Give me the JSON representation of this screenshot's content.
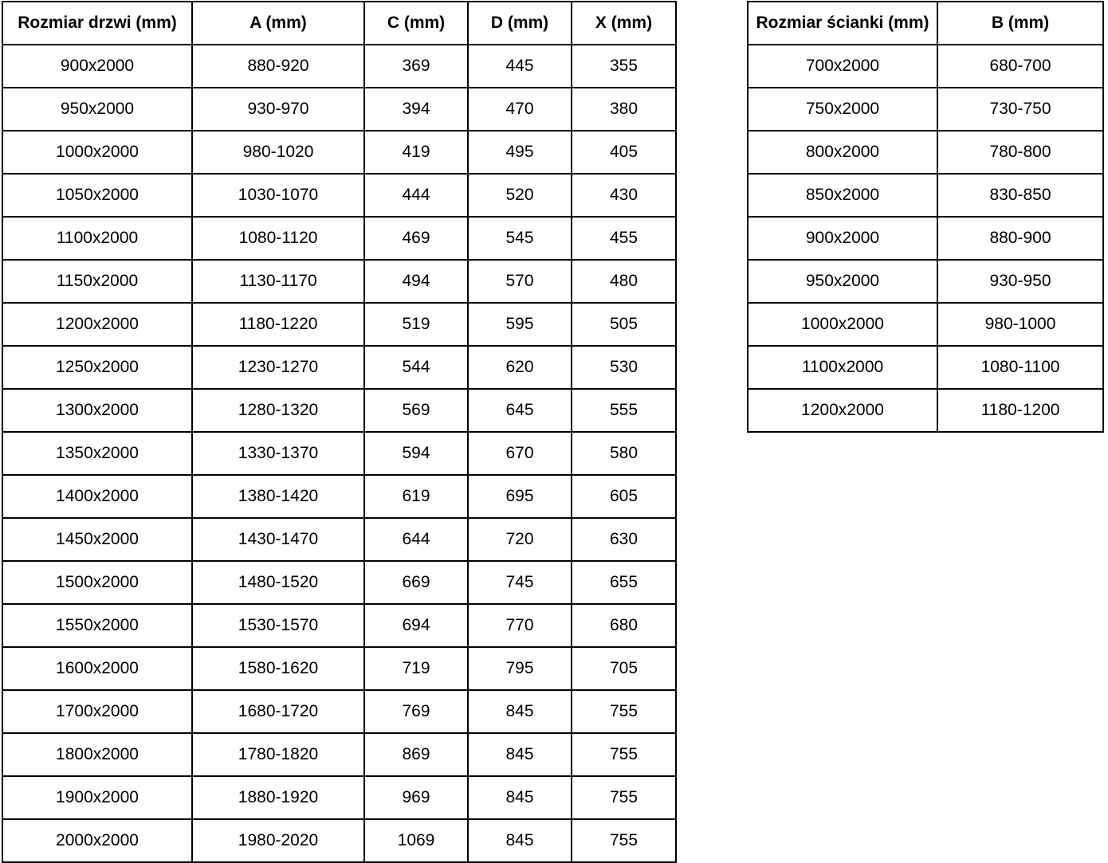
{
  "doors": {
    "headers": [
      "Rozmiar drzwi (mm)",
      "A (mm)",
      "C (mm)",
      "D (mm)",
      "X (mm)"
    ],
    "rows": [
      [
        "900x2000",
        "880-920",
        "369",
        "445",
        "355"
      ],
      [
        "950x2000",
        "930-970",
        "394",
        "470",
        "380"
      ],
      [
        "1000x2000",
        "980-1020",
        "419",
        "495",
        "405"
      ],
      [
        "1050x2000",
        "1030-1070",
        "444",
        "520",
        "430"
      ],
      [
        "1100x2000",
        "1080-1120",
        "469",
        "545",
        "455"
      ],
      [
        "1150x2000",
        "1130-1170",
        "494",
        "570",
        "480"
      ],
      [
        "1200x2000",
        "1180-1220",
        "519",
        "595",
        "505"
      ],
      [
        "1250x2000",
        "1230-1270",
        "544",
        "620",
        "530"
      ],
      [
        "1300x2000",
        "1280-1320",
        "569",
        "645",
        "555"
      ],
      [
        "1350x2000",
        "1330-1370",
        "594",
        "670",
        "580"
      ],
      [
        "1400x2000",
        "1380-1420",
        "619",
        "695",
        "605"
      ],
      [
        "1450x2000",
        "1430-1470",
        "644",
        "720",
        "630"
      ],
      [
        "1500x2000",
        "1480-1520",
        "669",
        "745",
        "655"
      ],
      [
        "1550x2000",
        "1530-1570",
        "694",
        "770",
        "680"
      ],
      [
        "1600x2000",
        "1580-1620",
        "719",
        "795",
        "705"
      ],
      [
        "1700x2000",
        "1680-1720",
        "769",
        "845",
        "755"
      ],
      [
        "1800x2000",
        "1780-1820",
        "869",
        "845",
        "755"
      ],
      [
        "1900x2000",
        "1880-1920",
        "969",
        "845",
        "755"
      ],
      [
        "2000x2000",
        "1980-2020",
        "1069",
        "845",
        "755"
      ]
    ]
  },
  "walls": {
    "headers": [
      "Rozmiar ścianki (mm)",
      "B (mm)"
    ],
    "rows": [
      [
        "700x2000",
        "680-700"
      ],
      [
        "750x2000",
        "730-750"
      ],
      [
        "800x2000",
        "780-800"
      ],
      [
        "850x2000",
        "830-850"
      ],
      [
        "900x2000",
        "880-900"
      ],
      [
        "950x2000",
        "930-950"
      ],
      [
        "1000x2000",
        "980-1000"
      ],
      [
        "1100x2000",
        "1080-1100"
      ],
      [
        "1200x2000",
        "1180-1200"
      ]
    ]
  },
  "colors": {
    "border": "#000000",
    "text": "#000000",
    "background": "#ffffff"
  }
}
